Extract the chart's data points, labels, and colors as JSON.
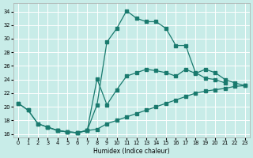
{
  "xlabel": "Humidex (Indice chaleur)",
  "bg_color": "#c8ece8",
  "line_color": "#1a7a6e",
  "grid_color": "#ffffff",
  "xlim": [
    -0.5,
    23.5
  ],
  "ylim": [
    15.5,
    35.2
  ],
  "xticks": [
    0,
    1,
    2,
    3,
    4,
    5,
    6,
    7,
    8,
    9,
    10,
    11,
    12,
    13,
    14,
    15,
    16,
    17,
    18,
    19,
    20,
    21,
    22,
    23
  ],
  "yticks": [
    16,
    18,
    20,
    22,
    24,
    26,
    28,
    30,
    32,
    34
  ],
  "line1_x": [
    0,
    1,
    2,
    3,
    4,
    5,
    6,
    7,
    8,
    9,
    10,
    11,
    12,
    13,
    14,
    15,
    16,
    17,
    18,
    19,
    20,
    21
  ],
  "line1_y": [
    20.5,
    19.5,
    17.5,
    17.0,
    16.5,
    16.3,
    16.2,
    16.5,
    20.3,
    29.5,
    31.5,
    34.1,
    33.0,
    32.5,
    32.5,
    31.5,
    29.0,
    29.0,
    25.0,
    24.2,
    24.0,
    23.5
  ],
  "line2_x": [
    3,
    4,
    5,
    6,
    7,
    8,
    9,
    10,
    11,
    12,
    13,
    14,
    15,
    16,
    17,
    18,
    19,
    20,
    21,
    22,
    23
  ],
  "line2_y": [
    17.0,
    16.5,
    16.3,
    16.2,
    16.5,
    24.1,
    20.3,
    22.5,
    24.5,
    25.0,
    25.5,
    25.3,
    25.0,
    24.5,
    25.5,
    24.9,
    25.5,
    25.0,
    24.0,
    23.5,
    23.1
  ],
  "line3_x": [
    0,
    1,
    2,
    3,
    4,
    5,
    6,
    7,
    8,
    9,
    10,
    11,
    12,
    13,
    14,
    15,
    16,
    17,
    18,
    19,
    20,
    21,
    22,
    23
  ],
  "line3_y": [
    20.5,
    19.5,
    17.5,
    17.0,
    16.5,
    16.3,
    16.2,
    16.5,
    16.7,
    17.5,
    18.0,
    18.5,
    19.0,
    19.5,
    20.0,
    20.5,
    21.0,
    21.5,
    22.0,
    22.3,
    22.5,
    22.7,
    23.0,
    23.1
  ]
}
